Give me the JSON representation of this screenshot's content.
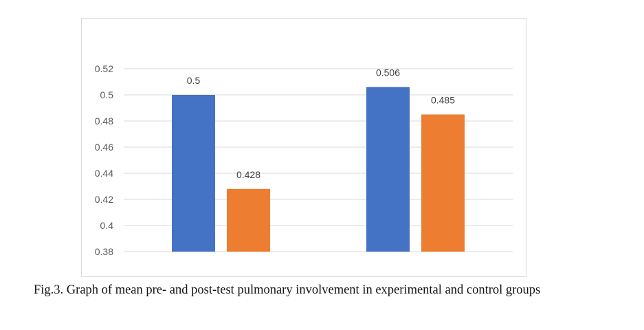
{
  "chart_data": {
    "type": "bar",
    "categories": [
      "",
      ""
    ],
    "series": [
      {
        "color": "#4472C4",
        "values": [
          0.5,
          0.506
        ],
        "labels": [
          "0.5",
          "0.506"
        ]
      },
      {
        "color": "#ED7D31",
        "values": [
          0.428,
          0.485
        ],
        "labels": [
          "0.428",
          "0.485"
        ]
      }
    ],
    "ylim": [
      0.38,
      0.52
    ],
    "yticks": [
      "0.38",
      "0.4",
      "0.42",
      "0.44",
      "0.46",
      "0.48",
      "0.5",
      "0.52"
    ],
    "grid": true,
    "legend": "none"
  },
  "caption": "Fig.3. Graph of mean pre- and post-test pulmonary involvement in experimental and control groups"
}
